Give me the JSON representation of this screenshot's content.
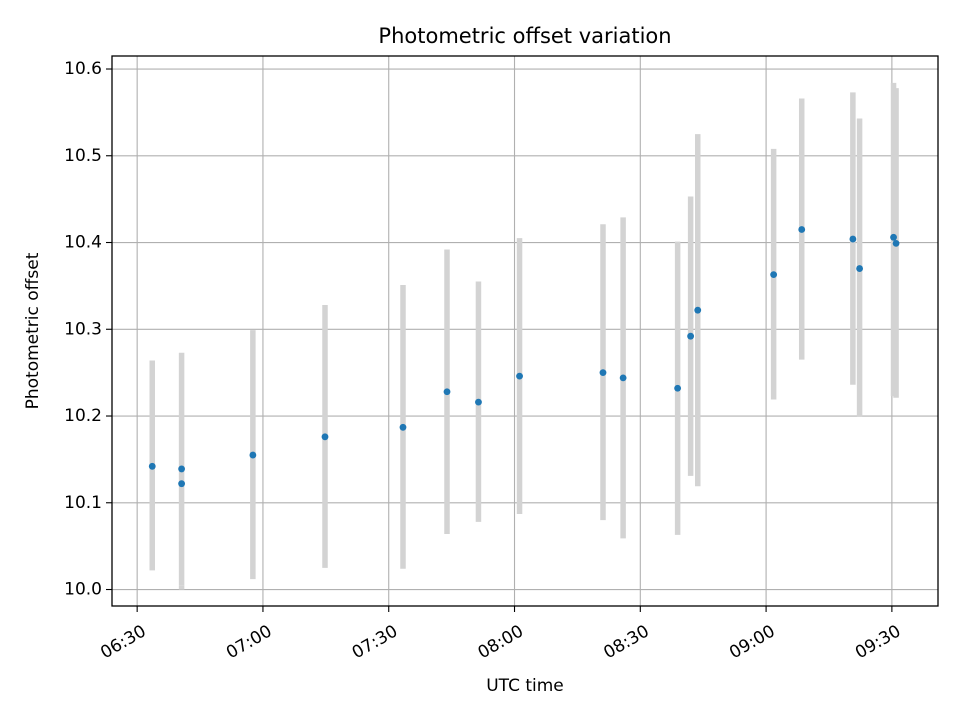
{
  "chart_data": {
    "type": "scatter",
    "title": "Photometric offset variation",
    "xlabel": "UTC time",
    "ylabel": "Photometric offset",
    "xlim_minutes": [
      384,
      581
    ],
    "ylim": [
      9.981,
      10.615
    ],
    "grid": true,
    "x_ticks": [
      {
        "minutes": 390,
        "label": "06:30"
      },
      {
        "minutes": 420,
        "label": "07:00"
      },
      {
        "minutes": 450,
        "label": "07:30"
      },
      {
        "minutes": 480,
        "label": "08:00"
      },
      {
        "minutes": 510,
        "label": "08:30"
      },
      {
        "minutes": 540,
        "label": "09:00"
      },
      {
        "minutes": 570,
        "label": "09:30"
      }
    ],
    "y_ticks": [
      {
        "value": 10.0,
        "label": "10.0"
      },
      {
        "value": 10.1,
        "label": "10.1"
      },
      {
        "value": 10.2,
        "label": "10.2"
      },
      {
        "value": 10.3,
        "label": "10.3"
      },
      {
        "value": 10.4,
        "label": "10.4"
      },
      {
        "value": 10.5,
        "label": "10.5"
      },
      {
        "value": 10.6,
        "label": "10.6"
      }
    ],
    "marker_color": "#1f77b4",
    "errorbar_color": "#d3d3d3",
    "points": [
      {
        "time": "06:33.6",
        "minutes": 393.6,
        "value": 10.142,
        "err_low": 10.022,
        "err_high": 10.264
      },
      {
        "time": "06:40.6",
        "minutes": 400.6,
        "value": 10.139,
        "err_low": 10.005,
        "err_high": 10.273
      },
      {
        "time": "06:40.6",
        "minutes": 400.6,
        "value": 10.122,
        "err_low": 10.0,
        "err_high": 10.005
      },
      {
        "time": "06:57.6",
        "minutes": 417.6,
        "value": 10.155,
        "err_low": 10.012,
        "err_high": 10.299
      },
      {
        "time": "07:14.8",
        "minutes": 434.8,
        "value": 10.176,
        "err_low": 10.025,
        "err_high": 10.328
      },
      {
        "time": "07:33.4",
        "minutes": 453.4,
        "value": 10.187,
        "err_low": 10.024,
        "err_high": 10.351
      },
      {
        "time": "07:43.9",
        "minutes": 463.9,
        "value": 10.228,
        "err_low": 10.064,
        "err_high": 10.392
      },
      {
        "time": "07:51.4",
        "minutes": 471.4,
        "value": 10.216,
        "err_low": 10.078,
        "err_high": 10.355
      },
      {
        "time": "08:01.2",
        "minutes": 481.2,
        "value": 10.246,
        "err_low": 10.087,
        "err_high": 10.405
      },
      {
        "time": "08:21.1",
        "minutes": 501.1,
        "value": 10.25,
        "err_low": 10.08,
        "err_high": 10.421
      },
      {
        "time": "08:25.9",
        "minutes": 505.9,
        "value": 10.244,
        "err_low": 10.059,
        "err_high": 10.429
      },
      {
        "time": "08:38.9",
        "minutes": 518.9,
        "value": 10.232,
        "err_low": 10.063,
        "err_high": 10.401
      },
      {
        "time": "08:42.0",
        "minutes": 522.0,
        "value": 10.292,
        "err_low": 10.131,
        "err_high": 10.453
      },
      {
        "time": "08:43.7",
        "minutes": 523.7,
        "value": 10.322,
        "err_low": 10.119,
        "err_high": 10.525
      },
      {
        "time": "09:01.8",
        "minutes": 541.8,
        "value": 10.363,
        "err_low": 10.219,
        "err_high": 10.508
      },
      {
        "time": "09:08.5",
        "minutes": 548.5,
        "value": 10.415,
        "err_low": 10.265,
        "err_high": 10.566
      },
      {
        "time": "09:20.7",
        "minutes": 560.7,
        "value": 10.404,
        "err_low": 10.236,
        "err_high": 10.573
      },
      {
        "time": "09:22.3",
        "minutes": 562.3,
        "value": 10.37,
        "err_low": 10.199,
        "err_high": 10.543
      },
      {
        "time": "09:30.4",
        "minutes": 570.4,
        "value": 10.406,
        "err_low": 10.223,
        "err_high": 10.584
      },
      {
        "time": "09:31.0",
        "minutes": 571.0,
        "value": 10.399,
        "err_low": 10.221,
        "err_high": 10.578
      }
    ]
  }
}
